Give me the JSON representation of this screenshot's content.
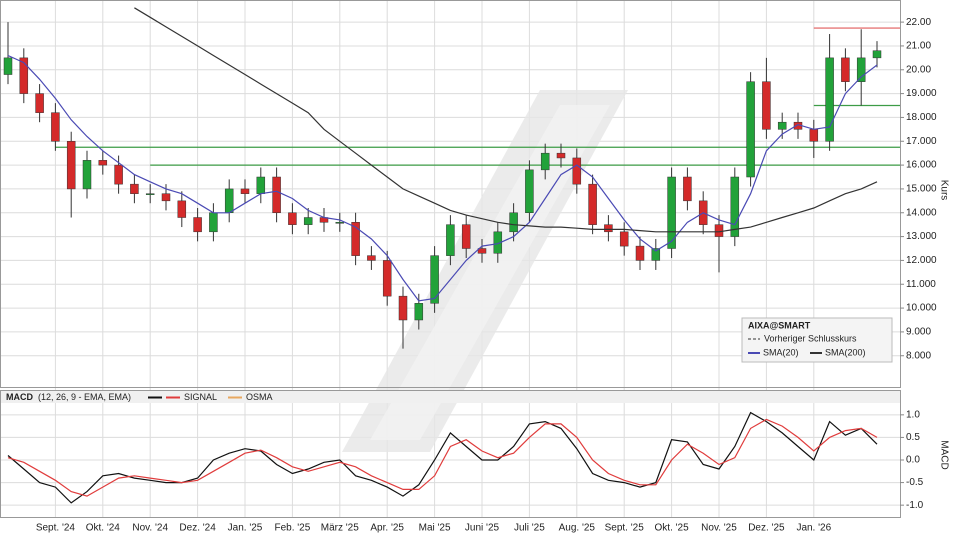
{
  "chart_data": [
    {
      "type": "candlestick",
      "title": "AIXA@SMART",
      "categories": [
        null,
        null,
        null,
        "Sept. '24",
        null,
        null,
        "Okt. '24",
        null,
        null,
        "Nov. '24",
        null,
        null,
        "Dez. '24",
        null,
        null,
        "Jan. '25",
        null,
        null,
        "Feb. '25",
        null,
        null,
        "März '25",
        null,
        null,
        "Apr. '25",
        null,
        null,
        "Mai '25",
        null,
        null,
        "Juni '25",
        null,
        null,
        "Juli '25",
        null,
        null,
        "Aug. '25",
        null,
        null,
        "Sept. '25",
        null,
        null,
        "Okt. '25",
        null,
        null,
        "Nov. '25",
        null,
        null,
        "Dez. '25",
        null,
        null,
        "Jan. '26",
        null,
        null,
        null,
        null
      ],
      "open": [
        19.8,
        20.5,
        19.0,
        18.2,
        17.0,
        15.0,
        16.2,
        16.0,
        15.2,
        14.8,
        14.8,
        14.5,
        13.8,
        13.2,
        14.0,
        15.0,
        14.8,
        15.5,
        14.0,
        13.5,
        13.8,
        13.6,
        13.6,
        12.2,
        12.0,
        10.5,
        9.5,
        10.2,
        12.2,
        13.5,
        12.5,
        12.3,
        13.2,
        14.0,
        15.8,
        16.5,
        16.3,
        15.2,
        13.5,
        13.2,
        12.6,
        12.0,
        12.5,
        15.5,
        14.5,
        13.5,
        13.0,
        15.5,
        19.5,
        17.5,
        17.8,
        17.5,
        17.0,
        20.5,
        19.5,
        20.5
      ],
      "high": [
        22.0,
        20.9,
        19.4,
        18.6,
        17.4,
        16.6,
        16.6,
        16.4,
        15.6,
        15.2,
        15.2,
        14.9,
        14.2,
        14.4,
        15.4,
        15.4,
        15.9,
        15.9,
        14.4,
        14.2,
        14.2,
        14.0,
        14.0,
        12.6,
        12.4,
        10.9,
        10.6,
        12.6,
        13.9,
        13.9,
        12.9,
        13.6,
        14.4,
        16.2,
        16.9,
        16.9,
        16.7,
        15.6,
        13.9,
        13.6,
        13.0,
        12.9,
        15.9,
        15.9,
        14.9,
        13.9,
        15.9,
        19.9,
        20.5,
        18.2,
        18.2,
        17.9,
        21.5,
        20.9,
        21.7,
        21.2
      ],
      "low": [
        19.4,
        18.6,
        17.8,
        16.6,
        13.8,
        14.6,
        15.6,
        14.8,
        14.4,
        14.4,
        14.1,
        13.4,
        12.8,
        12.8,
        13.6,
        14.4,
        14.4,
        13.6,
        13.1,
        13.1,
        13.2,
        13.2,
        11.8,
        11.6,
        10.1,
        8.3,
        9.1,
        9.8,
        11.8,
        12.1,
        11.9,
        11.9,
        12.8,
        13.6,
        15.4,
        15.9,
        14.8,
        13.1,
        12.8,
        12.2,
        11.6,
        11.6,
        12.1,
        14.1,
        13.1,
        11.5,
        12.6,
        15.1,
        17.1,
        17.1,
        17.1,
        16.3,
        16.6,
        19.1,
        18.5,
        20.1
      ],
      "close": [
        20.5,
        19.0,
        18.2,
        17.0,
        15.0,
        16.2,
        16.0,
        15.2,
        14.8,
        14.8,
        14.5,
        13.8,
        13.2,
        14.0,
        15.0,
        14.8,
        15.5,
        14.0,
        13.5,
        13.8,
        13.6,
        13.6,
        12.2,
        12.0,
        10.5,
        9.5,
        10.2,
        12.2,
        13.5,
        12.5,
        12.3,
        13.2,
        14.0,
        15.8,
        16.5,
        16.3,
        15.2,
        13.5,
        13.2,
        12.6,
        12.0,
        12.5,
        15.5,
        14.5,
        13.5,
        13.0,
        15.5,
        19.5,
        17.5,
        17.8,
        17.5,
        17.0,
        20.5,
        19.5,
        20.5,
        20.8
      ],
      "up_color": "#22a23a",
      "down_color": "#d42a2a",
      "series": [
        {
          "name": "SMA(20)",
          "color": "#4a4ab4",
          "values": [
            20.6,
            20.3,
            19.6,
            18.8,
            17.9,
            17.2,
            16.6,
            16.1,
            15.6,
            15.3,
            15.0,
            14.8,
            14.4,
            14.0,
            14.0,
            14.4,
            14.8,
            14.9,
            14.6,
            14.1,
            13.8,
            13.7,
            13.4,
            12.9,
            12.2,
            11.2,
            10.3,
            10.4,
            11.2,
            12.0,
            12.6,
            12.7,
            13.0,
            13.6,
            14.6,
            15.6,
            16.0,
            15.5,
            14.6,
            13.7,
            12.9,
            12.4,
            12.8,
            13.6,
            14.0,
            13.7,
            13.5,
            14.8,
            16.6,
            17.3,
            17.7,
            17.5,
            17.6,
            19.0,
            19.7,
            20.2
          ]
        },
        {
          "name": "SMA(200)",
          "color": "#333333",
          "values": [
            null,
            null,
            null,
            null,
            null,
            null,
            null,
            null,
            22.6,
            22.2,
            21.8,
            21.4,
            21.0,
            20.6,
            20.2,
            19.8,
            19.4,
            19.0,
            18.6,
            18.2,
            17.5,
            17.0,
            16.5,
            16.0,
            15.5,
            15.0,
            14.7,
            14.4,
            14.1,
            13.9,
            13.75,
            13.6,
            13.5,
            13.45,
            13.4,
            13.4,
            13.35,
            13.3,
            13.3,
            13.3,
            13.25,
            13.2,
            13.2,
            13.2,
            13.2,
            13.2,
            13.3,
            13.4,
            13.6,
            13.8,
            14.0,
            14.2,
            14.5,
            14.8,
            15.0,
            15.3
          ]
        }
      ],
      "reference_line": {
        "name": "Vorheriger Schlusskurs"
      },
      "levels": [
        {
          "value": 21.75,
          "color": "#e05a5a",
          "start": 51
        },
        {
          "value": 16.75,
          "color": "#3d9c46",
          "start": 3
        },
        {
          "value": 16.0,
          "color": "#3d9c46",
          "start": 9
        },
        {
          "value": 18.5,
          "color": "#3d9c46",
          "start": 51
        }
      ],
      "ylabel": "Kurs",
      "ylim": [
        6.73,
        22.76
      ],
      "yticks": [
        {
          "value": 22,
          "label": "22.00"
        },
        {
          "value": 21,
          "label": "21.00"
        },
        {
          "value": 20,
          "label": "20.00"
        },
        {
          "value": 19,
          "label": "19.000"
        },
        {
          "value": 18,
          "label": "18.000"
        },
        {
          "value": 17,
          "label": "17.000"
        },
        {
          "value": 16,
          "label": "16.000"
        },
        {
          "value": 15,
          "label": "15.000"
        },
        {
          "value": 14,
          "label": "14.000"
        },
        {
          "value": 13,
          "label": "13.000"
        },
        {
          "value": 12,
          "label": "12.000"
        },
        {
          "value": 11,
          "label": "11.000"
        },
        {
          "value": 10,
          "label": "10.000"
        },
        {
          "value": 9,
          "label": "9.000"
        },
        {
          "value": 8,
          "label": "8.000"
        }
      ],
      "grid": true
    },
    {
      "type": "line",
      "title": "MACD",
      "subtitle": "(12, 26, 9 - EMA, EMA)",
      "series": [
        {
          "color": "#111111",
          "values": [
            0.1,
            -0.2,
            -0.5,
            -0.6,
            -0.95,
            -0.7,
            -0.35,
            -0.3,
            -0.4,
            -0.45,
            -0.5,
            -0.5,
            -0.4,
            0.0,
            0.15,
            0.25,
            0.2,
            -0.1,
            -0.3,
            -0.2,
            -0.05,
            0.0,
            -0.35,
            -0.45,
            -0.6,
            -0.8,
            -0.55,
            0.0,
            0.6,
            0.3,
            0.0,
            0.0,
            0.3,
            0.8,
            0.85,
            0.7,
            0.25,
            -0.3,
            -0.45,
            -0.5,
            -0.6,
            -0.5,
            0.45,
            0.4,
            -0.1,
            -0.2,
            0.3,
            1.05,
            0.85,
            0.6,
            0.3,
            0.0,
            0.85,
            0.55,
            0.7,
            0.35
          ]
        },
        {
          "name": "SIGNAL",
          "color": "#e03c3c",
          "values": [
            0.05,
            -0.05,
            -0.25,
            -0.45,
            -0.7,
            -0.8,
            -0.6,
            -0.4,
            -0.35,
            -0.4,
            -0.45,
            -0.5,
            -0.45,
            -0.25,
            -0.05,
            0.15,
            0.22,
            0.05,
            -0.15,
            -0.25,
            -0.15,
            -0.05,
            -0.15,
            -0.35,
            -0.5,
            -0.65,
            -0.65,
            -0.35,
            0.3,
            0.45,
            0.2,
            0.05,
            0.15,
            0.5,
            0.8,
            0.8,
            0.5,
            0.0,
            -0.3,
            -0.45,
            -0.55,
            -0.55,
            0.0,
            0.35,
            0.15,
            -0.1,
            0.05,
            0.7,
            0.9,
            0.75,
            0.5,
            0.2,
            0.5,
            0.65,
            0.7,
            0.5
          ]
        }
      ],
      "legend_only": [
        {
          "name": "OSMA",
          "color": "#e8a860"
        }
      ],
      "ylabel": "MACD",
      "ylim": [
        -1.24,
        1.24
      ],
      "yticks": [
        {
          "value": 1,
          "label": "1.0"
        },
        0.5,
        {
          "value": 0,
          "label": "0.0"
        },
        -0.5,
        {
          "value": -1,
          "label": "-1.0"
        }
      ],
      "grid": true
    }
  ]
}
